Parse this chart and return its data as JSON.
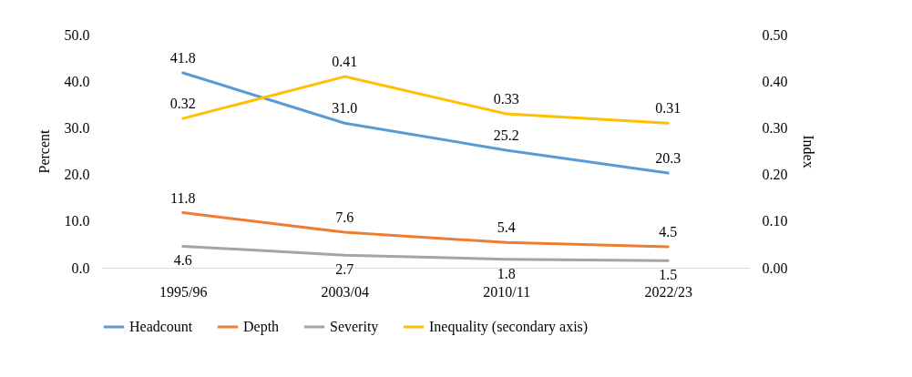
{
  "chart_data": {
    "type": "line",
    "categories": [
      "1995/96",
      "2003/04",
      "2010/11",
      "2022/23"
    ],
    "ylabel": "Percent",
    "y2label": "Index",
    "ylim": [
      0,
      50
    ],
    "yticks": [
      {
        "value": 0,
        "label": "0.0"
      },
      {
        "value": 10,
        "label": "10.0"
      },
      {
        "value": 20,
        "label": "20.0"
      },
      {
        "value": 30,
        "label": "30.0"
      },
      {
        "value": 40,
        "label": "40.0"
      },
      {
        "value": 50,
        "label": "50.0"
      }
    ],
    "y2lim": [
      0,
      0.5
    ],
    "y2ticks": [
      {
        "value": 0,
        "label": "0.00"
      },
      {
        "value": 0.1,
        "label": "0.10"
      },
      {
        "value": 0.2,
        "label": "0.20"
      },
      {
        "value": 0.3,
        "label": "0.30"
      },
      {
        "value": 0.4,
        "label": "0.40"
      },
      {
        "value": 0.5,
        "label": "0.50"
      }
    ],
    "series": [
      {
        "name": "Headcount",
        "color": "#5b9bd5",
        "values": [
          41.8,
          31.0,
          25.2,
          20.3
        ],
        "value_labels": [
          "41.8",
          "31.0",
          "25.2",
          "20.3"
        ]
      },
      {
        "name": "Depth",
        "color": "#ed7d31",
        "values": [
          11.8,
          7.6,
          5.4,
          4.5
        ],
        "value_labels": [
          "11.8",
          "7.6",
          "5.4",
          "4.5"
        ]
      },
      {
        "name": "Severity",
        "color": "#a5a5a5",
        "values": [
          4.6,
          2.7,
          1.8,
          1.5
        ],
        "value_labels": [
          "4.6",
          "2.7",
          "1.8",
          "1.5"
        ]
      },
      {
        "name": "Inequality (secondary axis)",
        "color": "#ffc000",
        "axis": "y2",
        "values": [
          0.32,
          0.41,
          0.33,
          0.31
        ],
        "value_labels": [
          "0.32",
          "0.41",
          "0.33",
          "0.31"
        ]
      }
    ],
    "legend": "bottom",
    "grid": false,
    "marker": "none",
    "line_style": "solid"
  }
}
